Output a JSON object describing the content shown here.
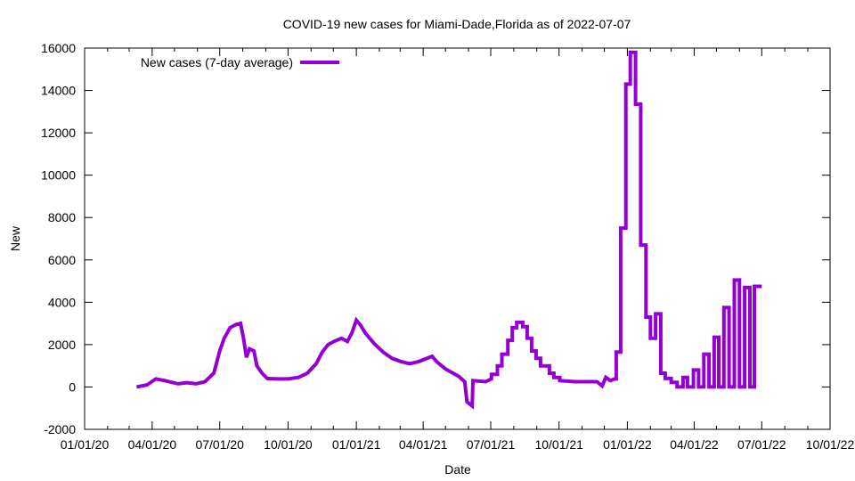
{
  "chart_data": {
    "type": "line",
    "title": "COVID-19 new cases for Miami-Dade,Florida as of 2022-07-07",
    "xlabel": "Date",
    "ylabel": "New",
    "x_units": "days since 2020-01-01",
    "xlim": [
      0,
      1004
    ],
    "ylim": [
      -2000,
      16000
    ],
    "grid": false,
    "legend_position": "top-left",
    "yticks": [
      -2000,
      0,
      2000,
      4000,
      6000,
      8000,
      10000,
      12000,
      14000,
      16000
    ],
    "ytick_labels": [
      "-2000",
      "0",
      "2000",
      "4000",
      "6000",
      "8000",
      "10000",
      "12000",
      "14000",
      "16000"
    ],
    "xticks": [
      0,
      91,
      182,
      274,
      366,
      456,
      547,
      639,
      731,
      821,
      912,
      1004
    ],
    "xtick_labels": [
      "01/01/20",
      "04/01/20",
      "07/01/20",
      "10/01/20",
      "01/01/21",
      "04/01/21",
      "07/01/21",
      "10/01/21",
      "01/01/22",
      "04/01/22",
      "07/01/22",
      "10/01/22"
    ],
    "xminor_ticks": [
      31,
      60,
      121,
      152,
      213,
      244,
      305,
      335,
      397,
      425,
      486,
      517,
      578,
      609,
      670,
      700,
      762,
      790,
      851,
      882,
      943,
      974
    ],
    "series": [
      {
        "name": "New cases (7-day average)",
        "color": "#9400d3",
        "points": [
          [
            70,
            0
          ],
          [
            84,
            100
          ],
          [
            96,
            380
          ],
          [
            108,
            300
          ],
          [
            126,
            150
          ],
          [
            138,
            200
          ],
          [
            150,
            150
          ],
          [
            162,
            250
          ],
          [
            174,
            650
          ],
          [
            182,
            1700
          ],
          [
            188,
            2300
          ],
          [
            196,
            2800
          ],
          [
            204,
            2950
          ],
          [
            210,
            3000
          ],
          [
            214,
            2300
          ],
          [
            218,
            1400
          ],
          [
            222,
            1800
          ],
          [
            228,
            1700
          ],
          [
            232,
            1000
          ],
          [
            239,
            650
          ],
          [
            246,
            400
          ],
          [
            258,
            380
          ],
          [
            274,
            380
          ],
          [
            288,
            450
          ],
          [
            300,
            650
          ],
          [
            312,
            1100
          ],
          [
            320,
            1650
          ],
          [
            328,
            2000
          ],
          [
            336,
            2150
          ],
          [
            346,
            2300
          ],
          [
            354,
            2150
          ],
          [
            360,
            2550
          ],
          [
            366,
            3150
          ],
          [
            372,
            2900
          ],
          [
            378,
            2550
          ],
          [
            390,
            2050
          ],
          [
            402,
            1650
          ],
          [
            414,
            1350
          ],
          [
            426,
            1200
          ],
          [
            438,
            1100
          ],
          [
            450,
            1200
          ],
          [
            468,
            1450
          ],
          [
            474,
            1200
          ],
          [
            486,
            850
          ],
          [
            504,
            500
          ],
          [
            512,
            250
          ],
          [
            515,
            -700
          ],
          [
            522,
            -900
          ],
          [
            523,
            300
          ],
          [
            540,
            250
          ],
          [
            548,
            380
          ],
          [
            548,
            600
          ],
          [
            556,
            600
          ],
          [
            556,
            1000
          ],
          [
            562,
            1000
          ],
          [
            562,
            1550
          ],
          [
            570,
            1550
          ],
          [
            570,
            2200
          ],
          [
            576,
            2200
          ],
          [
            576,
            2800
          ],
          [
            582,
            2800
          ],
          [
            582,
            3050
          ],
          [
            590,
            3050
          ],
          [
            590,
            2850
          ],
          [
            596,
            2850
          ],
          [
            596,
            2300
          ],
          [
            602,
            2300
          ],
          [
            602,
            1700
          ],
          [
            608,
            1700
          ],
          [
            608,
            1350
          ],
          [
            614,
            1350
          ],
          [
            614,
            1000
          ],
          [
            626,
            1000
          ],
          [
            626,
            650
          ],
          [
            632,
            650
          ],
          [
            632,
            450
          ],
          [
            640,
            450
          ],
          [
            640,
            300
          ],
          [
            660,
            250
          ],
          [
            690,
            250
          ],
          [
            697,
            50
          ],
          [
            702,
            450
          ],
          [
            708,
            300
          ],
          [
            714,
            380
          ],
          [
            716,
            380
          ],
          [
            716,
            1650
          ],
          [
            722,
            1650
          ],
          [
            722,
            7500
          ],
          [
            729,
            7500
          ],
          [
            729,
            14300
          ],
          [
            735,
            14300
          ],
          [
            735,
            15800
          ],
          [
            742,
            15800
          ],
          [
            742,
            13350
          ],
          [
            749,
            13350
          ],
          [
            749,
            6700
          ],
          [
            756,
            6700
          ],
          [
            756,
            3300
          ],
          [
            762,
            3300
          ],
          [
            762,
            2300
          ],
          [
            769,
            2300
          ],
          [
            769,
            3450
          ],
          [
            776,
            3450
          ],
          [
            776,
            650
          ],
          [
            782,
            650
          ],
          [
            782,
            400
          ],
          [
            790,
            400
          ],
          [
            790,
            220
          ],
          [
            798,
            220
          ],
          [
            798,
            0
          ],
          [
            806,
            0
          ],
          [
            806,
            450
          ],
          [
            812,
            450
          ],
          [
            812,
            0
          ],
          [
            820,
            0
          ],
          [
            820,
            800
          ],
          [
            827,
            800
          ],
          [
            827,
            0
          ],
          [
            834,
            0
          ],
          [
            834,
            1550
          ],
          [
            841,
            1550
          ],
          [
            841,
            0
          ],
          [
            848,
            0
          ],
          [
            848,
            2350
          ],
          [
            854,
            2350
          ],
          [
            854,
            0
          ],
          [
            861,
            0
          ],
          [
            861,
            3750
          ],
          [
            868,
            3750
          ],
          [
            868,
            0
          ],
          [
            875,
            0
          ],
          [
            875,
            5050
          ],
          [
            882,
            5050
          ],
          [
            882,
            0
          ],
          [
            889,
            0
          ],
          [
            889,
            4700
          ],
          [
            896,
            4700
          ],
          [
            896,
            0
          ],
          [
            902,
            0
          ],
          [
            902,
            4750
          ],
          [
            912,
            4750
          ]
        ]
      }
    ]
  }
}
